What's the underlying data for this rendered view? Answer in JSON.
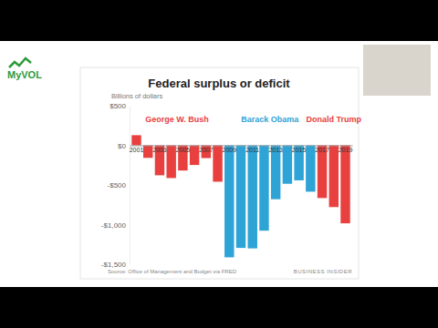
{
  "logo": "MyVOL",
  "chart_data": {
    "type": "bar",
    "title": "Federal surplus or deficit",
    "subtitle": "Billions of dollars",
    "source": "Source: Office of Management and Budget via FRED",
    "credit": "BUSINESS INSIDER",
    "categories": [
      "2001",
      null,
      "2003",
      null,
      "2005",
      null,
      "2007",
      null,
      "2009",
      null,
      "2011",
      null,
      "2013",
      null,
      "2015",
      null,
      "2017",
      null,
      "2019"
    ],
    "values": [
      128,
      -158,
      -378,
      -413,
      -318,
      -248,
      -161,
      -459,
      -1413,
      -1294,
      -1300,
      -1077,
      -680,
      -485,
      -442,
      -585,
      -665,
      -779,
      -984
    ],
    "colors": [
      "#e8403f",
      "#e8403f",
      "#e8403f",
      "#e8403f",
      "#e8403f",
      "#e8403f",
      "#e8403f",
      "#e8403f",
      "#2ea3d6",
      "#2ea3d6",
      "#2ea3d6",
      "#2ea3d6",
      "#2ea3d6",
      "#2ea3d6",
      "#2ea3d6",
      "#2ea3d6",
      "#e8403f",
      "#e8403f",
      "#e8403f"
    ],
    "annotations": [
      {
        "text": "George W. Bush",
        "color": "#e8403f"
      },
      {
        "text": "Barack Obama",
        "color": "#2ea3d6"
      },
      {
        "text": "Donald Trump",
        "color": "#e8403f"
      }
    ],
    "ylim": [
      -1500,
      500
    ],
    "yticks": [
      {
        "value": 500,
        "label": "$500"
      },
      {
        "value": 0,
        "label": "$0"
      },
      {
        "value": -500,
        "label": "-$500"
      },
      {
        "value": -1000,
        "label": "-$1,000"
      },
      {
        "value": -1500,
        "label": "-$1,500"
      }
    ],
    "grid": false
  }
}
